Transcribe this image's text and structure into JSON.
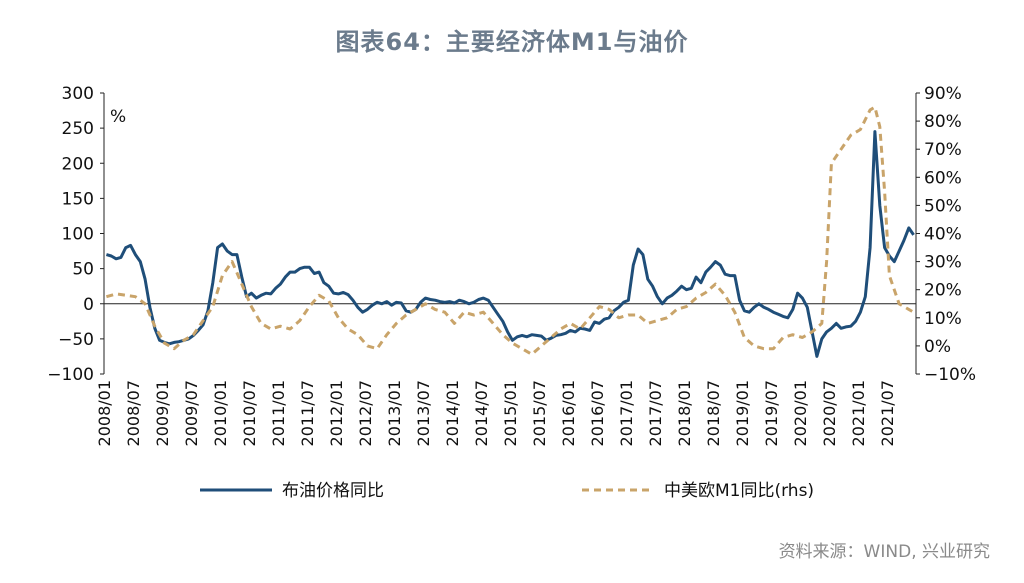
{
  "chart_data": {
    "type": "line",
    "title": "图表64：主要经济体M1与油价",
    "source": "资料来源：WIND, 兴业研究",
    "left_axis": {
      "unit": "%",
      "ylim": [
        -100,
        300
      ],
      "ticks": [
        300,
        250,
        200,
        150,
        100,
        50,
        0,
        -50,
        -100
      ],
      "tick_labels": [
        "300",
        "250",
        "200",
        "150",
        "100",
        "50",
        "0",
        "−50",
        "−100"
      ]
    },
    "right_axis": {
      "ylim": [
        -10,
        90
      ],
      "ticks": [
        90,
        80,
        70,
        60,
        50,
        40,
        30,
        20,
        10,
        0,
        -10
      ],
      "tick_labels": [
        "90%",
        "80%",
        "70%",
        "60%",
        "50%",
        "40%",
        "30%",
        "20%",
        "10%",
        "0%",
        "−10%"
      ]
    },
    "x_range": [
      "2008/01",
      "2021/12"
    ],
    "x_tick_labels": [
      "2008/01",
      "2008/07",
      "2009/01",
      "2009/07",
      "2010/01",
      "2010/07",
      "2011/01",
      "2011/07",
      "2012/01",
      "2012/07",
      "2013/01",
      "2013/07",
      "2014/01",
      "2014/07",
      "2015/01",
      "2015/07",
      "2016/01",
      "2016/07",
      "2017/01",
      "2017/07",
      "2018/01",
      "2018/07",
      "2019/01",
      "2019/07",
      "2020/01",
      "2020/07",
      "2021/01",
      "2021/07"
    ],
    "grid": false,
    "legend_position": "bottom",
    "series": [
      {
        "name": "布油价格同比",
        "axis": "left",
        "color": "#1f4e79",
        "style": "solid",
        "points": [
          [
            "2008/01",
            70
          ],
          [
            "2008/02",
            68
          ],
          [
            "2008/03",
            64
          ],
          [
            "2008/04",
            66
          ],
          [
            "2008/05",
            80
          ],
          [
            "2008/06",
            83
          ],
          [
            "2008/07",
            70
          ],
          [
            "2008/08",
            60
          ],
          [
            "2008/09",
            35
          ],
          [
            "2008/10",
            -5
          ],
          [
            "2008/11",
            -35
          ],
          [
            "2008/12",
            -52
          ],
          [
            "2009/01",
            -55
          ],
          [
            "2009/02",
            -57
          ],
          [
            "2009/03",
            -55
          ],
          [
            "2009/04",
            -54
          ],
          [
            "2009/05",
            -52
          ],
          [
            "2009/06",
            -50
          ],
          [
            "2009/07",
            -45
          ],
          [
            "2009/08",
            -38
          ],
          [
            "2009/09",
            -30
          ],
          [
            "2009/10",
            -10
          ],
          [
            "2009/11",
            30
          ],
          [
            "2009/12",
            80
          ],
          [
            "2010/01",
            85
          ],
          [
            "2010/02",
            75
          ],
          [
            "2010/03",
            70
          ],
          [
            "2010/04",
            70
          ],
          [
            "2010/05",
            38
          ],
          [
            "2010/06",
            10
          ],
          [
            "2010/07",
            15
          ],
          [
            "2010/08",
            8
          ],
          [
            "2010/09",
            12
          ],
          [
            "2010/10",
            15
          ],
          [
            "2010/11",
            14
          ],
          [
            "2010/12",
            22
          ],
          [
            "2011/01",
            28
          ],
          [
            "2011/02",
            38
          ],
          [
            "2011/03",
            45
          ],
          [
            "2011/04",
            45
          ],
          [
            "2011/05",
            50
          ],
          [
            "2011/06",
            52
          ],
          [
            "2011/07",
            52
          ],
          [
            "2011/08",
            43
          ],
          [
            "2011/09",
            45
          ],
          [
            "2011/10",
            30
          ],
          [
            "2011/11",
            25
          ],
          [
            "2011/12",
            15
          ],
          [
            "2012/01",
            14
          ],
          [
            "2012/02",
            16
          ],
          [
            "2012/03",
            13
          ],
          [
            "2012/04",
            5
          ],
          [
            "2012/05",
            -5
          ],
          [
            "2012/06",
            -12
          ],
          [
            "2012/07",
            -8
          ],
          [
            "2012/08",
            -2
          ],
          [
            "2012/09",
            2
          ],
          [
            "2012/10",
            0
          ],
          [
            "2012/11",
            3
          ],
          [
            "2012/12",
            -2
          ],
          [
            "2013/01",
            2
          ],
          [
            "2013/02",
            1
          ],
          [
            "2013/03",
            -10
          ],
          [
            "2013/04",
            -12
          ],
          [
            "2013/05",
            -8
          ],
          [
            "2013/06",
            2
          ],
          [
            "2013/07",
            8
          ],
          [
            "2013/08",
            6
          ],
          [
            "2013/09",
            5
          ],
          [
            "2013/10",
            3
          ],
          [
            "2013/11",
            2
          ],
          [
            "2013/12",
            3
          ],
          [
            "2014/01",
            1
          ],
          [
            "2014/02",
            5
          ],
          [
            "2014/03",
            3
          ],
          [
            "2014/04",
            0
          ],
          [
            "2014/05",
            2
          ],
          [
            "2014/06",
            6
          ],
          [
            "2014/07",
            8
          ],
          [
            "2014/08",
            5
          ],
          [
            "2014/09",
            -5
          ],
          [
            "2014/10",
            -15
          ],
          [
            "2014/11",
            -25
          ],
          [
            "2014/12",
            -40
          ],
          [
            "2015/01",
            -52
          ],
          [
            "2015/02",
            -47
          ],
          [
            "2015/03",
            -45
          ],
          [
            "2015/04",
            -47
          ],
          [
            "2015/05",
            -44
          ],
          [
            "2015/06",
            -45
          ],
          [
            "2015/07",
            -46
          ],
          [
            "2015/08",
            -52
          ],
          [
            "2015/09",
            -49
          ],
          [
            "2015/10",
            -45
          ],
          [
            "2015/11",
            -44
          ],
          [
            "2015/12",
            -42
          ],
          [
            "2016/01",
            -38
          ],
          [
            "2016/02",
            -40
          ],
          [
            "2016/03",
            -35
          ],
          [
            "2016/04",
            -36
          ],
          [
            "2016/05",
            -38
          ],
          [
            "2016/06",
            -26
          ],
          [
            "2016/07",
            -28
          ],
          [
            "2016/08",
            -22
          ],
          [
            "2016/09",
            -20
          ],
          [
            "2016/10",
            -10
          ],
          [
            "2016/11",
            -5
          ],
          [
            "2016/12",
            2
          ],
          [
            "2017/01",
            5
          ],
          [
            "2017/02",
            55
          ],
          [
            "2017/03",
            78
          ],
          [
            "2017/04",
            70
          ],
          [
            "2017/05",
            35
          ],
          [
            "2017/06",
            25
          ],
          [
            "2017/07",
            10
          ],
          [
            "2017/08",
            0
          ],
          [
            "2017/09",
            8
          ],
          [
            "2017/10",
            12
          ],
          [
            "2017/11",
            18
          ],
          [
            "2017/12",
            25
          ],
          [
            "2018/01",
            20
          ],
          [
            "2018/02",
            22
          ],
          [
            "2018/03",
            38
          ],
          [
            "2018/04",
            30
          ],
          [
            "2018/05",
            45
          ],
          [
            "2018/06",
            52
          ],
          [
            "2018/07",
            60
          ],
          [
            "2018/08",
            55
          ],
          [
            "2018/09",
            42
          ],
          [
            "2018/10",
            40
          ],
          [
            "2018/11",
            40
          ],
          [
            "2018/12",
            5
          ],
          [
            "2019/01",
            -10
          ],
          [
            "2019/02",
            -12
          ],
          [
            "2019/03",
            -5
          ],
          [
            "2019/04",
            0
          ],
          [
            "2019/05",
            -5
          ],
          [
            "2019/06",
            -8
          ],
          [
            "2019/07",
            -12
          ],
          [
            "2019/08",
            -15
          ],
          [
            "2019/09",
            -18
          ],
          [
            "2019/10",
            -20
          ],
          [
            "2019/11",
            -8
          ],
          [
            "2019/12",
            15
          ],
          [
            "2020/01",
            8
          ],
          [
            "2020/02",
            -5
          ],
          [
            "2020/03",
            -40
          ],
          [
            "2020/04",
            -75
          ],
          [
            "2020/05",
            -50
          ],
          [
            "2020/06",
            -40
          ],
          [
            "2020/07",
            -35
          ],
          [
            "2020/08",
            -28
          ],
          [
            "2020/09",
            -35
          ],
          [
            "2020/10",
            -33
          ],
          [
            "2020/11",
            -32
          ],
          [
            "2020/12",
            -25
          ],
          [
            "2021/01",
            -12
          ],
          [
            "2021/02",
            10
          ],
          [
            "2021/03",
            80
          ],
          [
            "2021/04",
            245
          ],
          [
            "2021/05",
            140
          ],
          [
            "2021/06",
            80
          ],
          [
            "2021/07",
            68
          ],
          [
            "2021/08",
            60
          ],
          [
            "2021/09",
            75
          ],
          [
            "2021/10",
            90
          ],
          [
            "2021/11",
            108
          ],
          [
            "2021/12",
            98
          ]
        ]
      },
      {
        "name": "中美欧M1同比(rhs)",
        "axis": "right",
        "color": "#c9a46a",
        "style": "dashed",
        "points": [
          [
            "2008/01",
            17.5
          ],
          [
            "2008/03",
            18.5
          ],
          [
            "2008/05",
            18
          ],
          [
            "2008/07",
            17.5
          ],
          [
            "2008/09",
            15
          ],
          [
            "2008/11",
            7
          ],
          [
            "2009/01",
            1
          ],
          [
            "2009/03",
            -1
          ],
          [
            "2009/05",
            2
          ],
          [
            "2009/07",
            4
          ],
          [
            "2009/09",
            9
          ],
          [
            "2009/11",
            14
          ],
          [
            "2010/01",
            25
          ],
          [
            "2010/03",
            30
          ],
          [
            "2010/05",
            22
          ],
          [
            "2010/07",
            14
          ],
          [
            "2010/09",
            8
          ],
          [
            "2010/11",
            6
          ],
          [
            "2011/01",
            7
          ],
          [
            "2011/03",
            6
          ],
          [
            "2011/05",
            9
          ],
          [
            "2011/07",
            14
          ],
          [
            "2011/09",
            18
          ],
          [
            "2011/11",
            16
          ],
          [
            "2012/01",
            10
          ],
          [
            "2012/03",
            6
          ],
          [
            "2012/05",
            4
          ],
          [
            "2012/07",
            0
          ],
          [
            "2012/09",
            -1
          ],
          [
            "2012/11",
            4
          ],
          [
            "2013/01",
            8
          ],
          [
            "2013/03",
            11
          ],
          [
            "2013/05",
            13
          ],
          [
            "2013/07",
            15
          ],
          [
            "2013/09",
            13
          ],
          [
            "2013/11",
            12
          ],
          [
            "2014/01",
            8
          ],
          [
            "2014/03",
            12
          ],
          [
            "2014/05",
            11
          ],
          [
            "2014/07",
            12
          ],
          [
            "2014/09",
            8
          ],
          [
            "2014/11",
            4
          ],
          [
            "2015/01",
            1
          ],
          [
            "2015/03",
            -1
          ],
          [
            "2015/05",
            -3
          ],
          [
            "2015/07",
            0
          ],
          [
            "2015/09",
            3
          ],
          [
            "2015/11",
            6
          ],
          [
            "2016/01",
            8
          ],
          [
            "2016/03",
            6
          ],
          [
            "2016/05",
            10
          ],
          [
            "2016/07",
            14
          ],
          [
            "2016/09",
            13
          ],
          [
            "2016/11",
            10
          ],
          [
            "2017/01",
            11
          ],
          [
            "2017/03",
            11
          ],
          [
            "2017/05",
            8
          ],
          [
            "2017/07",
            9
          ],
          [
            "2017/09",
            10
          ],
          [
            "2017/11",
            13
          ],
          [
            "2018/01",
            14
          ],
          [
            "2018/03",
            17
          ],
          [
            "2018/05",
            19
          ],
          [
            "2018/07",
            22
          ],
          [
            "2018/09",
            18
          ],
          [
            "2018/11",
            12
          ],
          [
            "2019/01",
            3
          ],
          [
            "2019/03",
            0
          ],
          [
            "2019/05",
            -1
          ],
          [
            "2019/07",
            -1
          ],
          [
            "2019/09",
            3
          ],
          [
            "2019/11",
            4
          ],
          [
            "2020/01",
            3
          ],
          [
            "2020/03",
            5
          ],
          [
            "2020/05",
            8
          ],
          [
            "2020/06",
            30
          ],
          [
            "2020/07",
            65
          ],
          [
            "2020/09",
            70
          ],
          [
            "2020/11",
            75
          ],
          [
            "2021/01",
            77
          ],
          [
            "2021/03",
            84
          ],
          [
            "2021/04",
            85
          ],
          [
            "2021/05",
            78
          ],
          [
            "2021/06",
            55
          ],
          [
            "2021/07",
            25
          ],
          [
            "2021/09",
            15
          ],
          [
            "2021/11",
            13
          ],
          [
            "2021/12",
            12
          ]
        ]
      }
    ]
  }
}
